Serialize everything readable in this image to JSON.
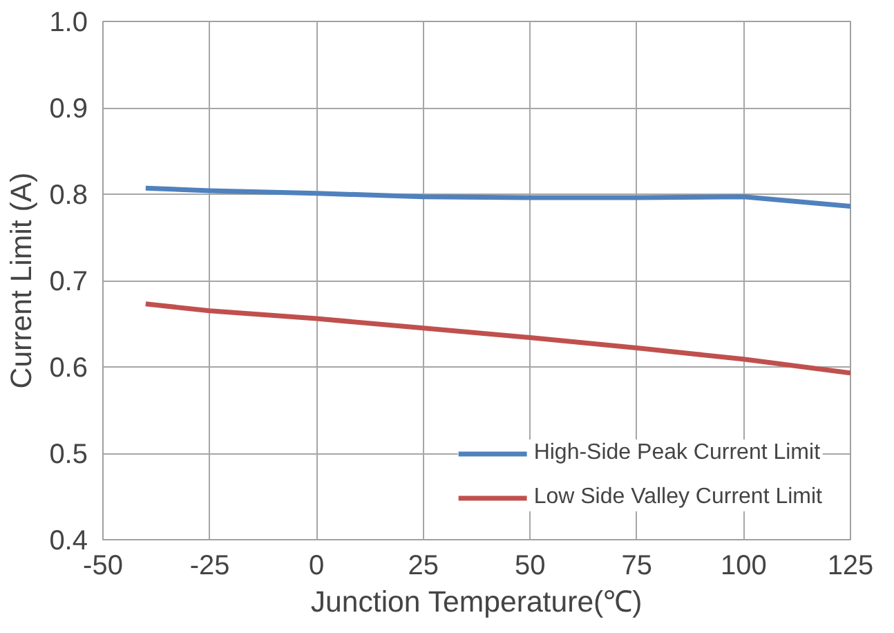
{
  "chart_data": {
    "type": "line",
    "xlabel": "Junction Temperature(℃)",
    "ylabel": "Current Limit (A)",
    "xlim": [
      -50,
      125
    ],
    "xticks": [
      -50,
      -25,
      0,
      25,
      50,
      75,
      100,
      125
    ],
    "ylim": [
      0.4,
      1.0
    ],
    "yticks": [
      {
        "value": 0.4,
        "label": "0.4"
      },
      {
        "value": 0.5,
        "label": "0.5"
      },
      {
        "value": 0.6,
        "label": "0.6"
      },
      {
        "value": 0.7,
        "label": "0.7"
      },
      {
        "value": 0.8,
        "label": "0.8"
      },
      {
        "value": 0.9,
        "label": "0.9"
      },
      {
        "value": 1.0,
        "label": "1.0"
      }
    ],
    "grid": true,
    "legend": "bottom right",
    "marker": "none",
    "line_style": "solid",
    "x": [
      -40,
      -25,
      0,
      25,
      50,
      75,
      100,
      125
    ],
    "series": [
      {
        "name": "High-Side Peak Current Limit",
        "color": "#4f81bd",
        "values": [
          0.807,
          0.804,
          0.801,
          0.797,
          0.796,
          0.796,
          0.797,
          0.786
        ]
      },
      {
        "name": "Low Side Valley Current Limit",
        "color": "#c0504d",
        "values": [
          0.673,
          0.665,
          0.656,
          0.645,
          0.634,
          0.622,
          0.609,
          0.593
        ]
      }
    ]
  }
}
